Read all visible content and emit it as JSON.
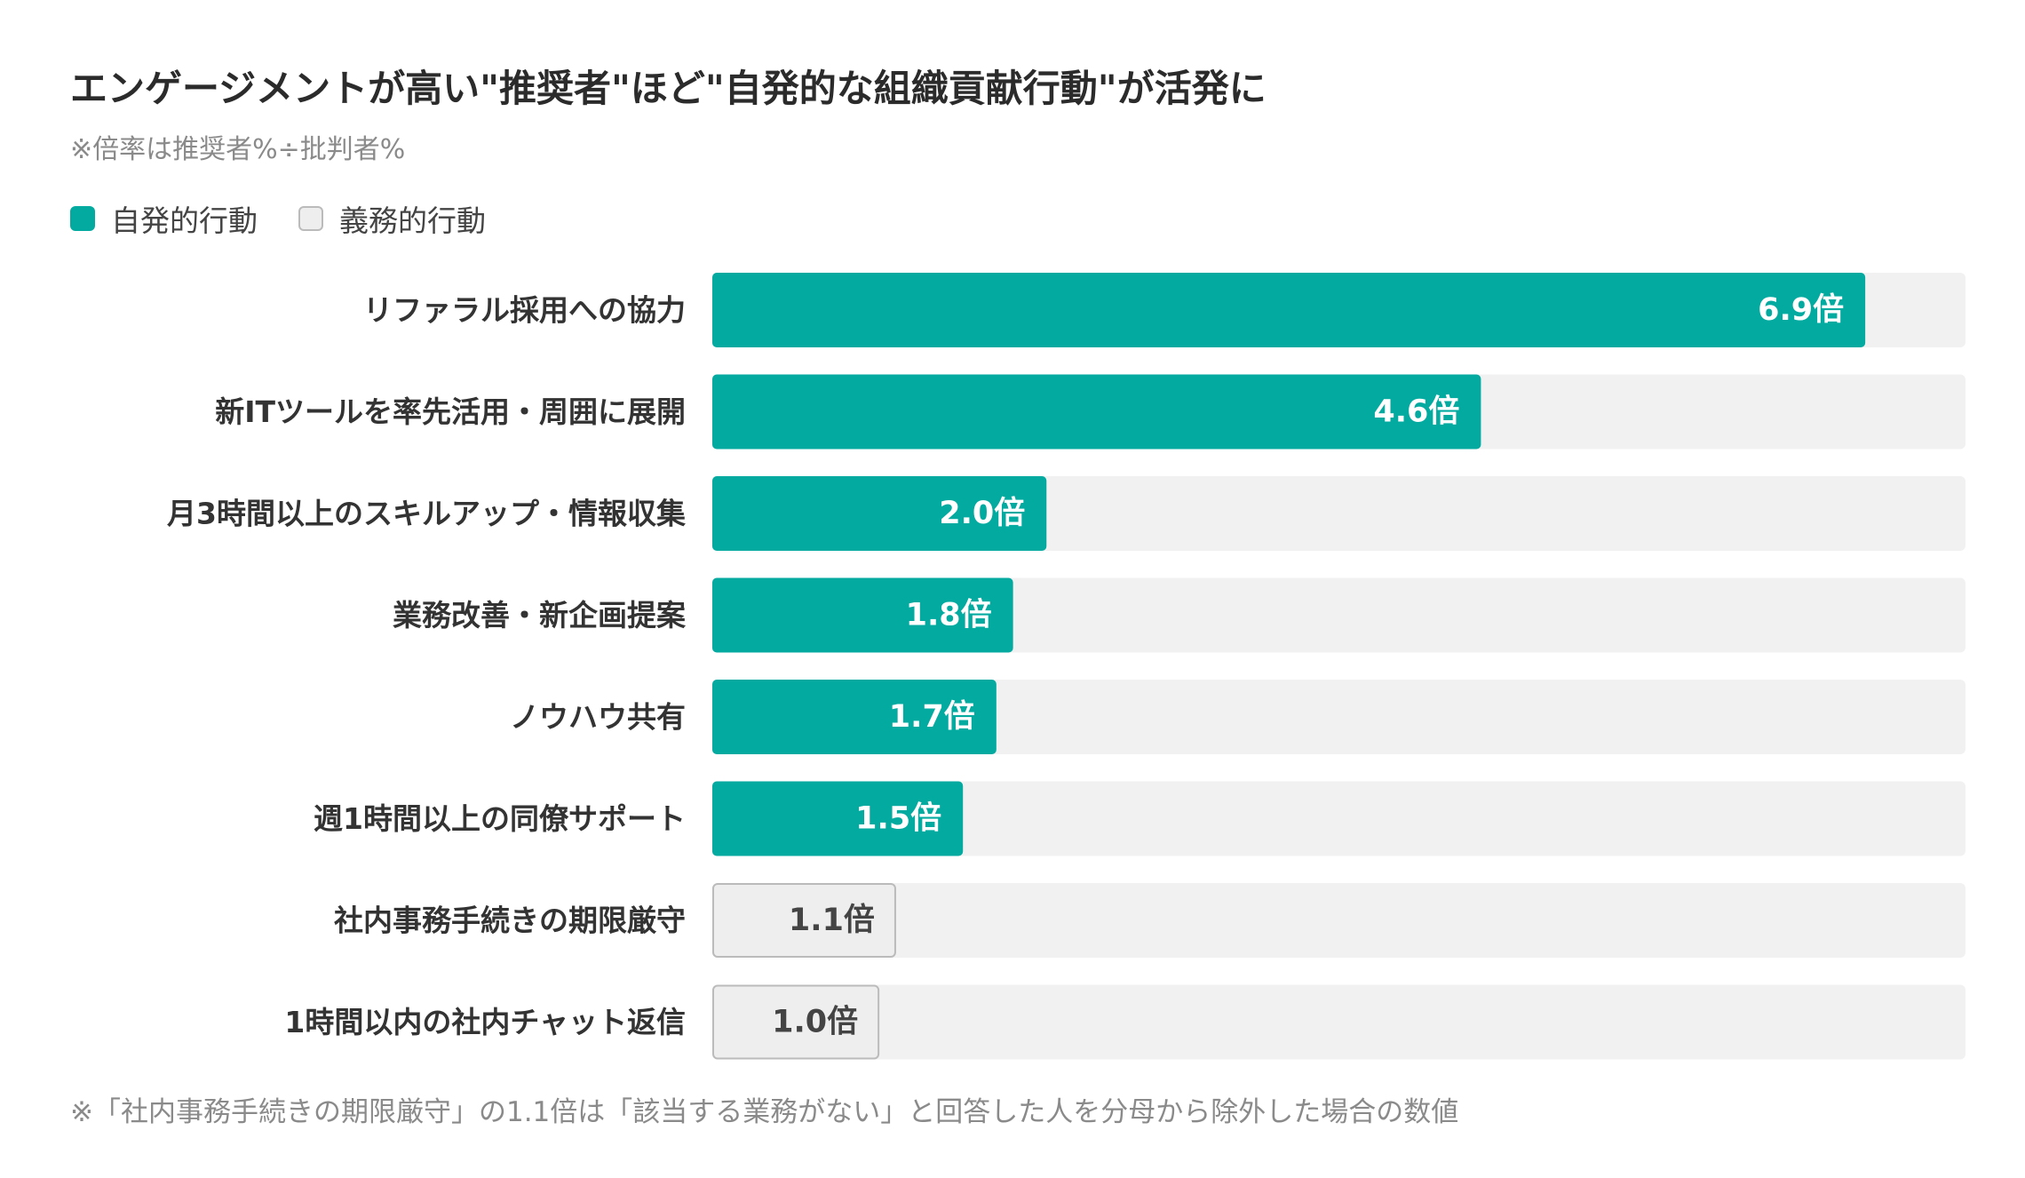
{
  "title": "エンゲージメントが高い\"推奨者\"ほど\"自発的な組織貢献行動\"が活発に",
  "subtitle": "※倍率は推奨者%÷批判者%",
  "legend": {
    "voluntary": "自発的行動",
    "obligatory": "義務的行動"
  },
  "colors": {
    "voluntary": "#03aaa0",
    "obligatory_fill": "#eeeeee",
    "obligatory_border": "#bbbbbb",
    "track": "#f1f1f1"
  },
  "footnote": "※「社内事務手続きの期限厳守」の1.1倍は「該当する業務がない」と回答した人を分母から除外した場合の数値",
  "chart_data": {
    "type": "bar",
    "orientation": "horizontal",
    "xlim": [
      0,
      7.5
    ],
    "unit": "倍",
    "categories": [
      "リファラル採用への協力",
      "新ITツールを率先活用・周囲に展開",
      "月3時間以上のスキルアップ・情報収集",
      "業務改善・新企画提案",
      "ノウハウ共有",
      "週1時間以上の同僚サポート",
      "社内事務手続きの期限厳守",
      "1時間以内の社内チャット返信"
    ],
    "values": [
      6.9,
      4.6,
      2.0,
      1.8,
      1.7,
      1.5,
      1.1,
      1.0
    ],
    "value_labels": [
      "6.9倍",
      "4.6倍",
      "2.0倍",
      "1.8倍",
      "1.7倍",
      "1.5倍",
      "1.1倍",
      "1.0倍"
    ],
    "groups": [
      "voluntary",
      "voluntary",
      "voluntary",
      "voluntary",
      "voluntary",
      "voluntary",
      "obligatory",
      "obligatory"
    ],
    "legend_position": "top-left"
  }
}
